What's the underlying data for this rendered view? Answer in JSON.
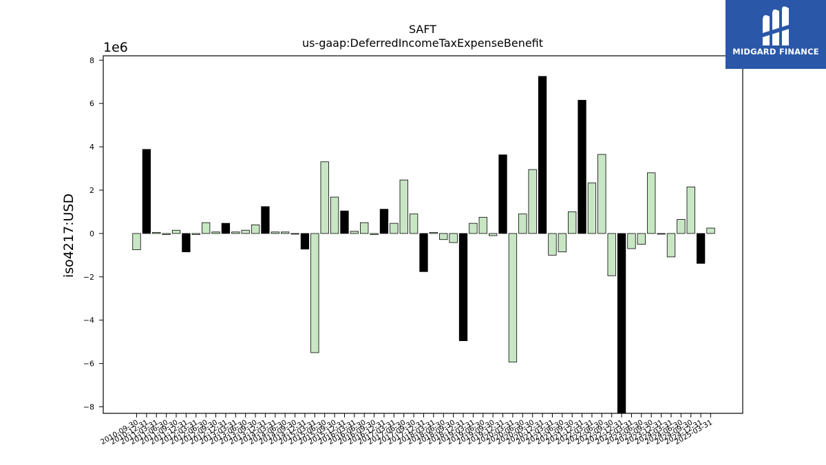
{
  "logo": {
    "text": "MIDGARD FINANCE",
    "background": "#2a57a8"
  },
  "chart_data": {
    "type": "bar",
    "title": "SAFT",
    "subtitle": "us-gaap:DeferredIncomeTaxExpenseBenefit",
    "ylabel": "iso4217:USD",
    "xlabel": "",
    "scale_label": "1e6",
    "ylim": [
      -8.3,
      8.2
    ],
    "yticks": [
      -8,
      -6,
      -4,
      -2,
      0,
      2,
      4,
      6,
      8
    ],
    "grid": false,
    "colors": {
      "light": "#c8e6c4",
      "dark": "#000000",
      "edge": "#000000"
    },
    "x_tick_labels": [
      "2010-09-30",
      "2010-12-31",
      "2011-03-31",
      "2011-06-30",
      "2011-09-30",
      "2011-12-31",
      "2012-03-31",
      "2012-06-30",
      "2012-09-30",
      "2012-12-31",
      "2013-03-31",
      "2013-06-30",
      "2013-09-30",
      "2013-12-31",
      "2014-03-31",
      "2014-06-30",
      "2014-09-30",
      "2014-12-31",
      "2015-03-31",
      "2015-06-30",
      "2015-09-30",
      "2015-12-31",
      "2016-03-31",
      "2016-06-30",
      "2016-09-30",
      "2016-12-31",
      "2017-03-31",
      "2017-06-30",
      "2017-09-30",
      "2017-12-31",
      "2018-03-31",
      "2018-06-30",
      "2018-09-30",
      "2018-12-31",
      "2019-03-31",
      "2019-06-30",
      "2019-09-30",
      "2019-12-31",
      "2020-03-31",
      "2020-06-30",
      "2020-09-30",
      "2020-12-31",
      "2021-03-31",
      "2021-06-30",
      "2021-09-30",
      "2021-12-31",
      "2022-03-31",
      "2022-06-30",
      "2022-09-30",
      "2022-12-31",
      "2023-03-31",
      "2023-06-30",
      "2023-09-30",
      "2023-12-31",
      "2024-03-31",
      "2024-06-30",
      "2024-09-30",
      "2024-12-31",
      "2025-03-31"
    ],
    "values": [
      -0.75,
      3.88,
      0.05,
      -0.05,
      0.15,
      -0.85,
      -0.05,
      0.5,
      0.07,
      0.47,
      0.07,
      0.15,
      0.4,
      1.24,
      0.07,
      0.07,
      0.0,
      -0.72,
      -5.5,
      3.31,
      1.68,
      1.04,
      0.1,
      0.5,
      -0.05,
      1.12,
      0.47,
      2.47,
      0.9,
      -1.76,
      0.05,
      -0.28,
      -0.42,
      -4.95,
      0.47,
      0.75,
      -0.1,
      3.63,
      -5.93,
      0.9,
      2.95,
      7.25,
      -1.0,
      -0.85,
      1.0,
      6.15,
      2.33,
      3.65,
      -1.95,
      -8.5,
      -0.7,
      -0.5,
      2.8,
      0.0,
      -1.08,
      0.65,
      2.15,
      -1.38,
      0.25
    ],
    "dark_bars": [
      1,
      5,
      9,
      13,
      17,
      21,
      25,
      29,
      33,
      37,
      41,
      45,
      49,
      57
    ]
  }
}
